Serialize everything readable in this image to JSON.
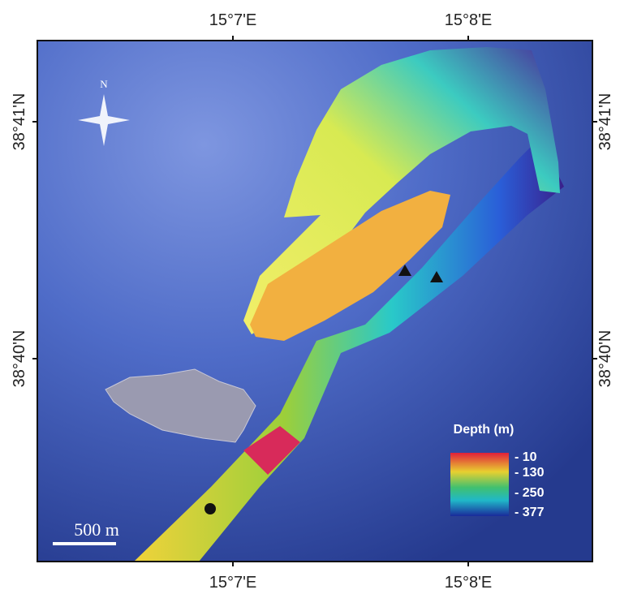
{
  "map": {
    "top_labels": [
      "15°7'E",
      "15°8'E"
    ],
    "bottom_labels": [
      "15°7'E",
      "15°8'E"
    ],
    "left_labels": [
      "38°41'N",
      "38°40'N"
    ],
    "right_labels": [
      "38°41'N",
      "38°40'N"
    ],
    "north": "N",
    "scale_bar": "500 m",
    "legend": {
      "title": "Depth (m)",
      "labels": [
        "- 10",
        "- 130",
        "- 250",
        "- 377"
      ]
    }
  }
}
